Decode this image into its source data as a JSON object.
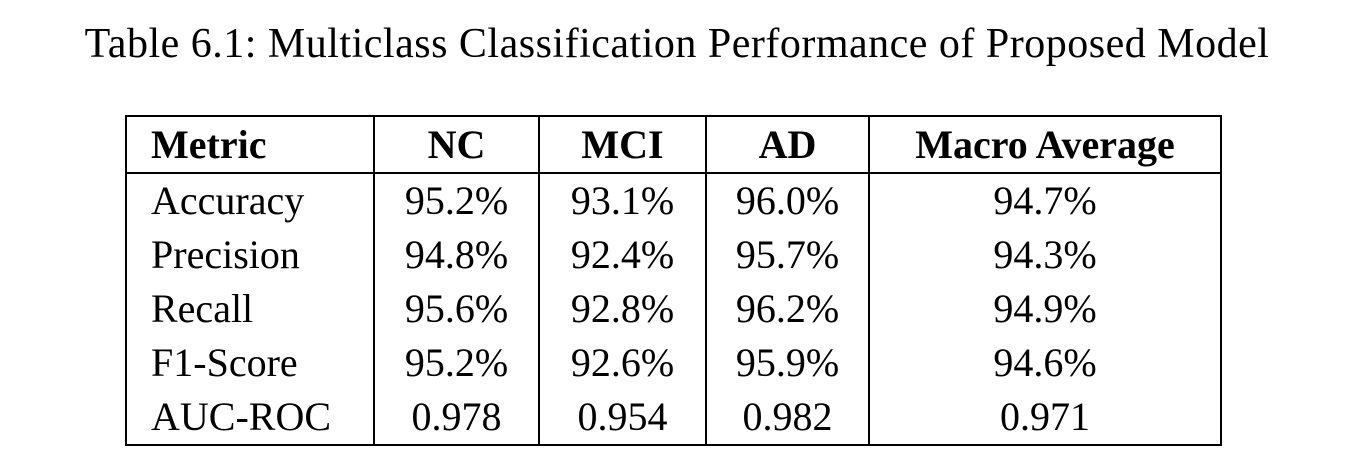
{
  "caption": "Table 6.1: Multiclass Classification Performance of Proposed Model",
  "table": {
    "header": [
      "Metric",
      "NC",
      "MCI",
      "AD",
      "Macro Average"
    ],
    "rows": [
      [
        "Accuracy",
        "95.2%",
        "93.1%",
        "96.0%",
        "94.7%"
      ],
      [
        "Precision",
        "94.8%",
        "92.4%",
        "95.7%",
        "94.3%"
      ],
      [
        "Recall",
        "95.6%",
        "92.8%",
        "96.2%",
        "94.9%"
      ],
      [
        "F1-Score",
        "95.2%",
        "92.6%",
        "95.9%",
        "94.6%"
      ],
      [
        "AUC-ROC",
        "0.978",
        "0.954",
        "0.982",
        "0.971"
      ]
    ]
  }
}
